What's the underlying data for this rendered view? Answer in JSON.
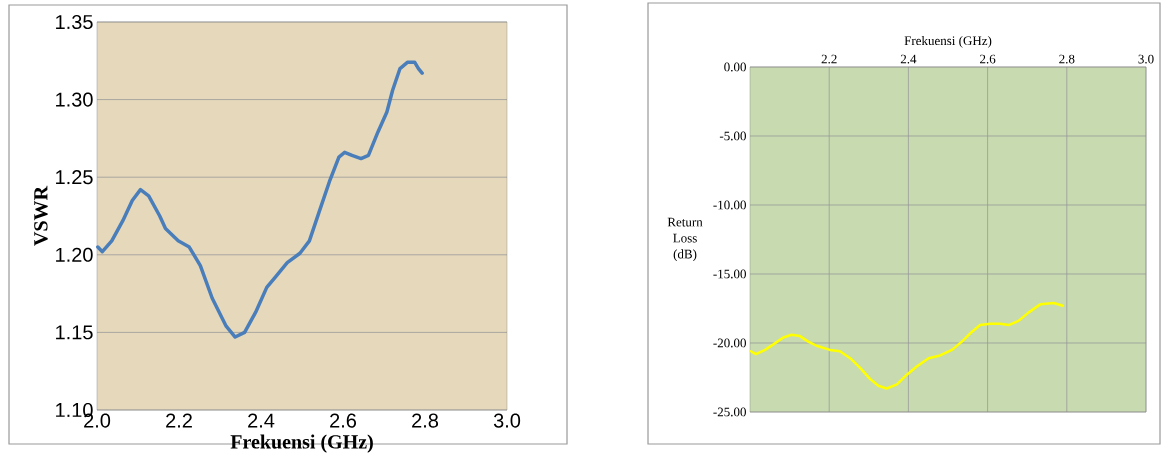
{
  "chart_data": [
    {
      "type": "line",
      "xlabel": "Frekuensi (GHz)",
      "ylabel": "VSWR",
      "xlim": [
        2.0,
        3.0
      ],
      "xticks": [
        {
          "value": 2.0,
          "label": "2.0"
        },
        {
          "value": 2.2,
          "label": "2.2"
        },
        {
          "value": 2.4,
          "label": "2.4"
        },
        {
          "value": 2.6,
          "label": "2.6"
        },
        {
          "value": 2.8,
          "label": "2.8"
        },
        {
          "value": 3.0,
          "label": "3.0"
        }
      ],
      "ylim": [
        1.1,
        1.35
      ],
      "yticks": [
        {
          "value": 1.1,
          "label": "1.10"
        },
        {
          "value": 1.15,
          "label": "1.15"
        },
        {
          "value": 1.2,
          "label": "1.20"
        },
        {
          "value": 1.25,
          "label": "1.25"
        },
        {
          "value": 1.3,
          "label": "1.30"
        },
        {
          "value": 1.35,
          "label": "1.35"
        }
      ],
      "grid": "y",
      "marker": "none",
      "line_style": "solid",
      "series": [
        {
          "color": "#4a7ebb",
          "x": [
            2.002,
            2.013,
            2.036,
            2.063,
            2.086,
            2.106,
            2.126,
            2.153,
            2.167,
            2.198,
            2.225,
            2.252,
            2.281,
            2.315,
            2.337,
            2.36,
            2.387,
            2.414,
            2.436,
            2.464,
            2.495,
            2.518,
            2.541,
            2.568,
            2.59,
            2.604,
            2.622,
            2.644,
            2.662,
            2.685,
            2.707,
            2.721,
            2.739,
            2.757,
            2.775,
            2.784,
            2.793
          ],
          "values": [
            1.205,
            1.202,
            1.209,
            1.222,
            1.235,
            1.242,
            1.238,
            1.225,
            1.217,
            1.209,
            1.205,
            1.193,
            1.172,
            1.154,
            1.147,
            1.15,
            1.163,
            1.179,
            1.186,
            1.195,
            1.201,
            1.209,
            1.227,
            1.248,
            1.263,
            1.266,
            1.264,
            1.262,
            1.264,
            1.279,
            1.292,
            1.306,
            1.32,
            1.324,
            1.324,
            1.32,
            1.317
          ]
        }
      ]
    },
    {
      "type": "line",
      "xlabel": "Frekuensi (GHz)",
      "ylabel": "Return Loss (dB)",
      "xlim": [
        2.0,
        3.0
      ],
      "xticks": [
        {
          "value": 2.2,
          "label": "2.2"
        },
        {
          "value": 2.4,
          "label": "2.4"
        },
        {
          "value": 2.6,
          "label": "2.6"
        },
        {
          "value": 2.8,
          "label": "2.8"
        },
        {
          "value": 3.0,
          "label": "3.0"
        }
      ],
      "ylim": [
        -25,
        0
      ],
      "yticks": [
        {
          "value": -25,
          "label": "-25.00"
        },
        {
          "value": -20,
          "label": "-20.00"
        },
        {
          "value": -15,
          "label": "-15.00"
        },
        {
          "value": -10,
          "label": "-10.00"
        },
        {
          "value": -5,
          "label": "-5.00"
        },
        {
          "value": 0,
          "label": "0.00"
        }
      ],
      "grid": true,
      "marker": "none",
      "line_style": "solid",
      "series": [
        {
          "color": "#ffff00",
          "x": [
            2.002,
            2.015,
            2.038,
            2.059,
            2.084,
            2.105,
            2.126,
            2.147,
            2.168,
            2.202,
            2.227,
            2.253,
            2.278,
            2.303,
            2.324,
            2.345,
            2.371,
            2.396,
            2.421,
            2.451,
            2.48,
            2.51,
            2.535,
            2.56,
            2.581,
            2.607,
            2.632,
            2.653,
            2.678,
            2.703,
            2.733,
            2.767,
            2.79
          ],
          "values": [
            -20.6,
            -20.8,
            -20.5,
            -20.1,
            -19.6,
            -19.4,
            -19.5,
            -19.9,
            -20.2,
            -20.5,
            -20.6,
            -21.1,
            -21.8,
            -22.6,
            -23.1,
            -23.3,
            -23.0,
            -22.3,
            -21.7,
            -21.1,
            -20.9,
            -20.5,
            -19.9,
            -19.2,
            -18.7,
            -18.6,
            -18.6,
            -18.7,
            -18.4,
            -17.8,
            -17.2,
            -17.1,
            -17.3
          ]
        }
      ]
    }
  ]
}
